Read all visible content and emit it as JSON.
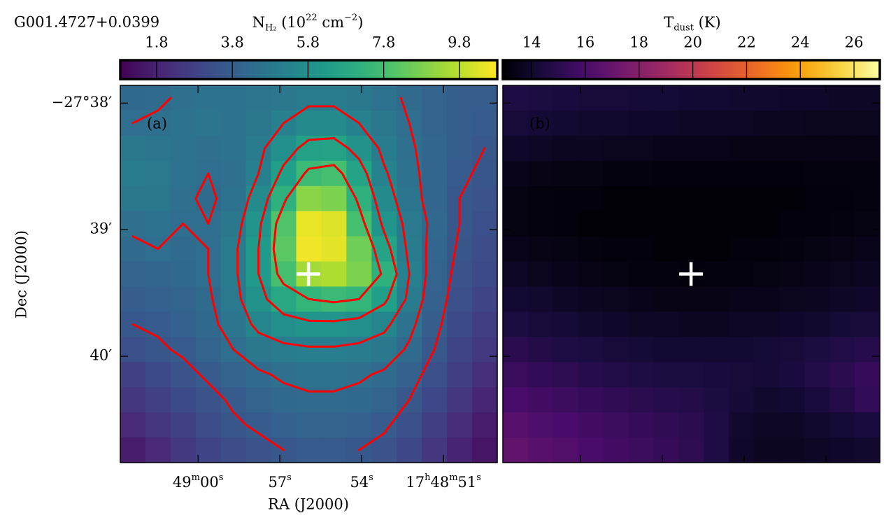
{
  "chart_data": [
    {
      "type": "heatmap",
      "title": "G001.4727+0.0399",
      "panel_label": "(a)",
      "colorbar_label": [
        "N",
        "H₂",
        " (10",
        "22",
        " cm",
        "−2",
        ")"
      ],
      "colormap": "viridis",
      "clim": [
        0.84,
        10.8
      ],
      "cticks": [
        1.8,
        3.8,
        5.8,
        7.8,
        9.8
      ],
      "x_label": "RA (J2000)",
      "y_label": "Dec (J2000)",
      "xlim": [
        62.85,
        49.03
      ],
      "ylim": [
        40.84,
        37.86
      ],
      "xticks": [
        {
          "value": 60,
          "label": [
            "49",
            "m",
            "00",
            "s"
          ]
        },
        {
          "value": 57,
          "label": [
            "57",
            "s"
          ]
        },
        {
          "value": 54,
          "label": [
            "54",
            "s"
          ]
        },
        {
          "value": 51,
          "label": [
            "17",
            "h",
            "48",
            "m",
            "51",
            "s"
          ]
        }
      ],
      "yticks": [
        {
          "value": 38,
          "label": "−27°38′"
        },
        {
          "value": 39,
          "label": "39′"
        },
        {
          "value": 40,
          "label": "40′"
        }
      ],
      "contour_levels": [
        3.6,
        4.4,
        5.2,
        6.2,
        7.4
      ],
      "contour_color": "#ff0000",
      "marker": {
        "x": 55.95,
        "y": 39.35
      },
      "z": [
        [
          4.2,
          4.3,
          4.5,
          4.6,
          4.6,
          4.7,
          4.8,
          5.0,
          5.0,
          4.8,
          4.6,
          4.3,
          4.0,
          3.8,
          3.8
        ],
        [
          4.4,
          4.5,
          4.6,
          4.7,
          4.6,
          4.8,
          5.2,
          5.6,
          5.6,
          5.2,
          4.8,
          4.4,
          4.0,
          3.8,
          3.7
        ],
        [
          4.8,
          4.7,
          4.6,
          4.5,
          4.6,
          5.0,
          5.8,
          6.5,
          6.6,
          5.9,
          5.0,
          4.5,
          4.1,
          3.8,
          3.6
        ],
        [
          5.0,
          4.9,
          4.6,
          4.4,
          4.5,
          5.2,
          6.4,
          7.6,
          7.8,
          6.6,
          5.3,
          4.6,
          4.1,
          3.7,
          3.5
        ],
        [
          4.8,
          4.8,
          4.5,
          4.3,
          4.6,
          5.6,
          7.2,
          9.0,
          8.8,
          7.2,
          5.6,
          4.7,
          4.1,
          3.6,
          3.4
        ],
        [
          4.5,
          4.6,
          4.4,
          4.4,
          4.8,
          6.0,
          8.0,
          10.5,
          10.3,
          7.8,
          6.0,
          4.9,
          4.2,
          3.6,
          3.3
        ],
        [
          4.3,
          4.4,
          4.3,
          4.4,
          5.0,
          6.2,
          8.2,
          10.6,
          10.4,
          8.6,
          6.6,
          5.0,
          4.1,
          3.5,
          3.2
        ],
        [
          4.0,
          4.1,
          4.2,
          4.4,
          5.0,
          6.2,
          7.8,
          9.4,
          9.6,
          8.8,
          7.2,
          5.2,
          4.0,
          3.4,
          3.1
        ],
        [
          3.8,
          3.9,
          4.0,
          4.3,
          4.9,
          5.9,
          6.8,
          7.4,
          7.6,
          7.4,
          6.4,
          5.0,
          3.9,
          3.3,
          2.9
        ],
        [
          3.6,
          3.7,
          3.9,
          4.2,
          4.7,
          5.4,
          5.8,
          6.0,
          6.0,
          5.8,
          5.4,
          4.6,
          3.8,
          3.1,
          2.7
        ],
        [
          3.3,
          3.5,
          3.7,
          4.0,
          4.4,
          4.8,
          5.0,
          5.1,
          5.1,
          5.0,
          4.8,
          4.3,
          3.6,
          2.9,
          2.5
        ],
        [
          2.8,
          3.1,
          3.4,
          3.7,
          4.0,
          4.3,
          4.5,
          4.6,
          4.6,
          4.5,
          4.3,
          3.9,
          3.3,
          2.7,
          2.2
        ],
        [
          2.4,
          2.8,
          3.1,
          3.4,
          3.7,
          4.0,
          4.2,
          4.3,
          4.3,
          4.2,
          4.0,
          3.6,
          3.0,
          2.4,
          1.9
        ],
        [
          2.0,
          2.4,
          2.8,
          3.2,
          3.5,
          3.7,
          3.9,
          4.0,
          4.0,
          3.9,
          3.7,
          3.3,
          2.7,
          2.1,
          1.6
        ],
        [
          1.6,
          2.0,
          2.5,
          2.9,
          3.2,
          3.4,
          3.6,
          3.7,
          3.7,
          3.6,
          3.4,
          3.0,
          2.4,
          1.8,
          1.4
        ]
      ]
    },
    {
      "type": "heatmap",
      "panel_label": "(b)",
      "colorbar_label": [
        "T",
        "dust",
        " (K)"
      ],
      "colormap": "inferno",
      "clim": [
        12.93,
        26.96
      ],
      "cticks": [
        14,
        16,
        18,
        20,
        22,
        24,
        26
      ],
      "marker": {
        "x": 55.95,
        "y": 39.35
      },
      "z": [
        [
          14.6,
          14.5,
          14.4,
          14.3,
          14.3,
          14.2,
          14.2,
          14.1,
          14.1,
          14.0,
          14.0,
          13.9,
          13.9,
          13.8,
          13.8
        ],
        [
          14.3,
          14.2,
          14.1,
          14.0,
          14.0,
          13.9,
          13.9,
          13.8,
          13.8,
          13.8,
          13.7,
          13.7,
          13.6,
          13.6,
          13.6
        ],
        [
          13.9,
          13.8,
          13.7,
          13.7,
          13.6,
          13.6,
          13.5,
          13.5,
          13.5,
          13.4,
          13.4,
          13.4,
          13.4,
          13.4,
          13.4
        ],
        [
          13.5,
          13.4,
          13.3,
          13.3,
          13.2,
          13.2,
          13.1,
          13.1,
          13.1,
          13.1,
          13.1,
          13.1,
          13.2,
          13.2,
          13.2
        ],
        [
          13.3,
          13.2,
          13.1,
          13.1,
          13.0,
          13.0,
          13.0,
          13.0,
          13.0,
          13.0,
          13.0,
          13.0,
          13.1,
          13.1,
          13.2
        ],
        [
          13.3,
          13.2,
          13.1,
          13.0,
          13.0,
          13.0,
          13.0,
          13.0,
          13.0,
          13.0,
          13.0,
          13.1,
          13.1,
          13.2,
          13.3
        ],
        [
          13.5,
          13.4,
          13.3,
          13.2,
          13.1,
          13.1,
          13.0,
          13.0,
          13.0,
          13.1,
          13.1,
          13.2,
          13.3,
          13.4,
          13.5
        ],
        [
          13.8,
          13.6,
          13.5,
          13.4,
          13.3,
          13.2,
          13.2,
          13.1,
          13.2,
          13.2,
          13.3,
          13.4,
          13.5,
          13.6,
          13.7
        ],
        [
          14.1,
          14.0,
          13.8,
          13.7,
          13.6,
          13.5,
          13.4,
          13.4,
          13.4,
          13.5,
          13.5,
          13.6,
          13.7,
          13.8,
          13.9
        ],
        [
          14.5,
          14.3,
          14.2,
          14.0,
          13.9,
          13.8,
          13.8,
          13.7,
          13.7,
          13.8,
          13.8,
          13.9,
          14.0,
          14.2,
          14.3
        ],
        [
          15.0,
          14.8,
          14.6,
          14.5,
          14.3,
          14.2,
          14.1,
          14.1,
          14.1,
          14.1,
          14.2,
          14.3,
          14.5,
          14.7,
          14.9
        ],
        [
          15.5,
          15.3,
          15.1,
          14.9,
          14.7,
          14.6,
          14.5,
          14.5,
          14.4,
          14.3,
          14.2,
          14.4,
          14.7,
          15.0,
          15.4
        ],
        [
          16.0,
          15.8,
          15.6,
          15.4,
          15.2,
          15.0,
          14.9,
          14.8,
          14.5,
          14.2,
          14.0,
          14.1,
          14.4,
          14.8,
          15.3
        ],
        [
          16.5,
          16.2,
          16.0,
          15.8,
          15.6,
          15.4,
          15.2,
          15.0,
          14.6,
          14.0,
          13.8,
          13.8,
          14.0,
          14.2,
          14.4
        ],
        [
          16.8,
          16.5,
          16.3,
          16.0,
          15.8,
          15.6,
          15.4,
          15.1,
          14.6,
          13.9,
          13.7,
          13.7,
          13.8,
          13.9,
          14.0
        ]
      ]
    }
  ]
}
